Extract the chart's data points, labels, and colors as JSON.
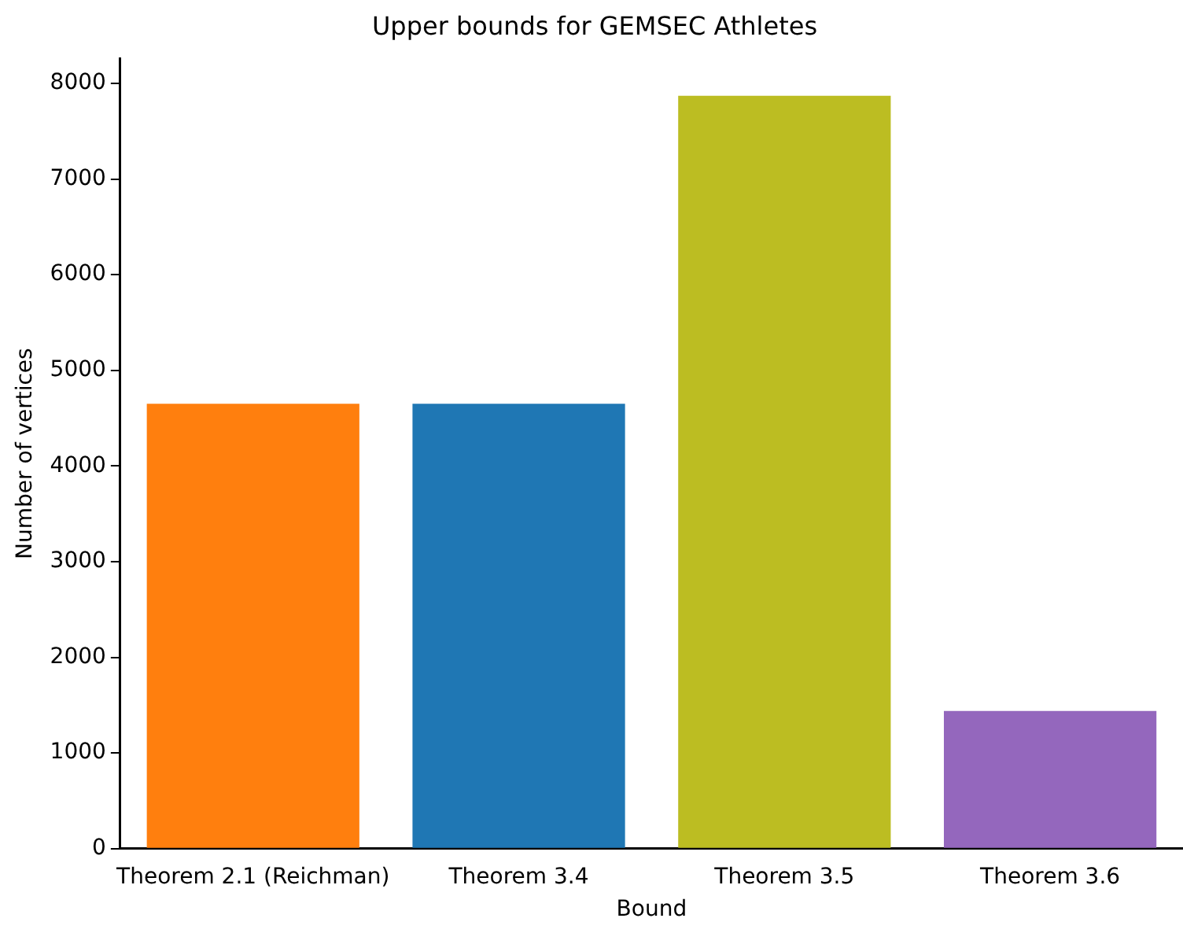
{
  "chart_data": {
    "type": "bar",
    "title": "Upper bounds for GEMSEC Athletes",
    "xlabel": "Bound",
    "ylabel": "Number of vertices",
    "categories": [
      "Theorem 2.1 (Reichman)",
      "Theorem 3.4",
      "Theorem 3.5",
      "Theorem 3.6"
    ],
    "values": [
      4650,
      4650,
      7870,
      1440
    ],
    "colors": [
      "#ff7f0e",
      "#1f77b4",
      "#bcbd22",
      "#9467bd"
    ],
    "ylim": [
      0,
      8260
    ],
    "yticks": [
      0,
      1000,
      2000,
      3000,
      4000,
      5000,
      6000,
      7000,
      8000
    ],
    "grid": false,
    "legend": false
  }
}
